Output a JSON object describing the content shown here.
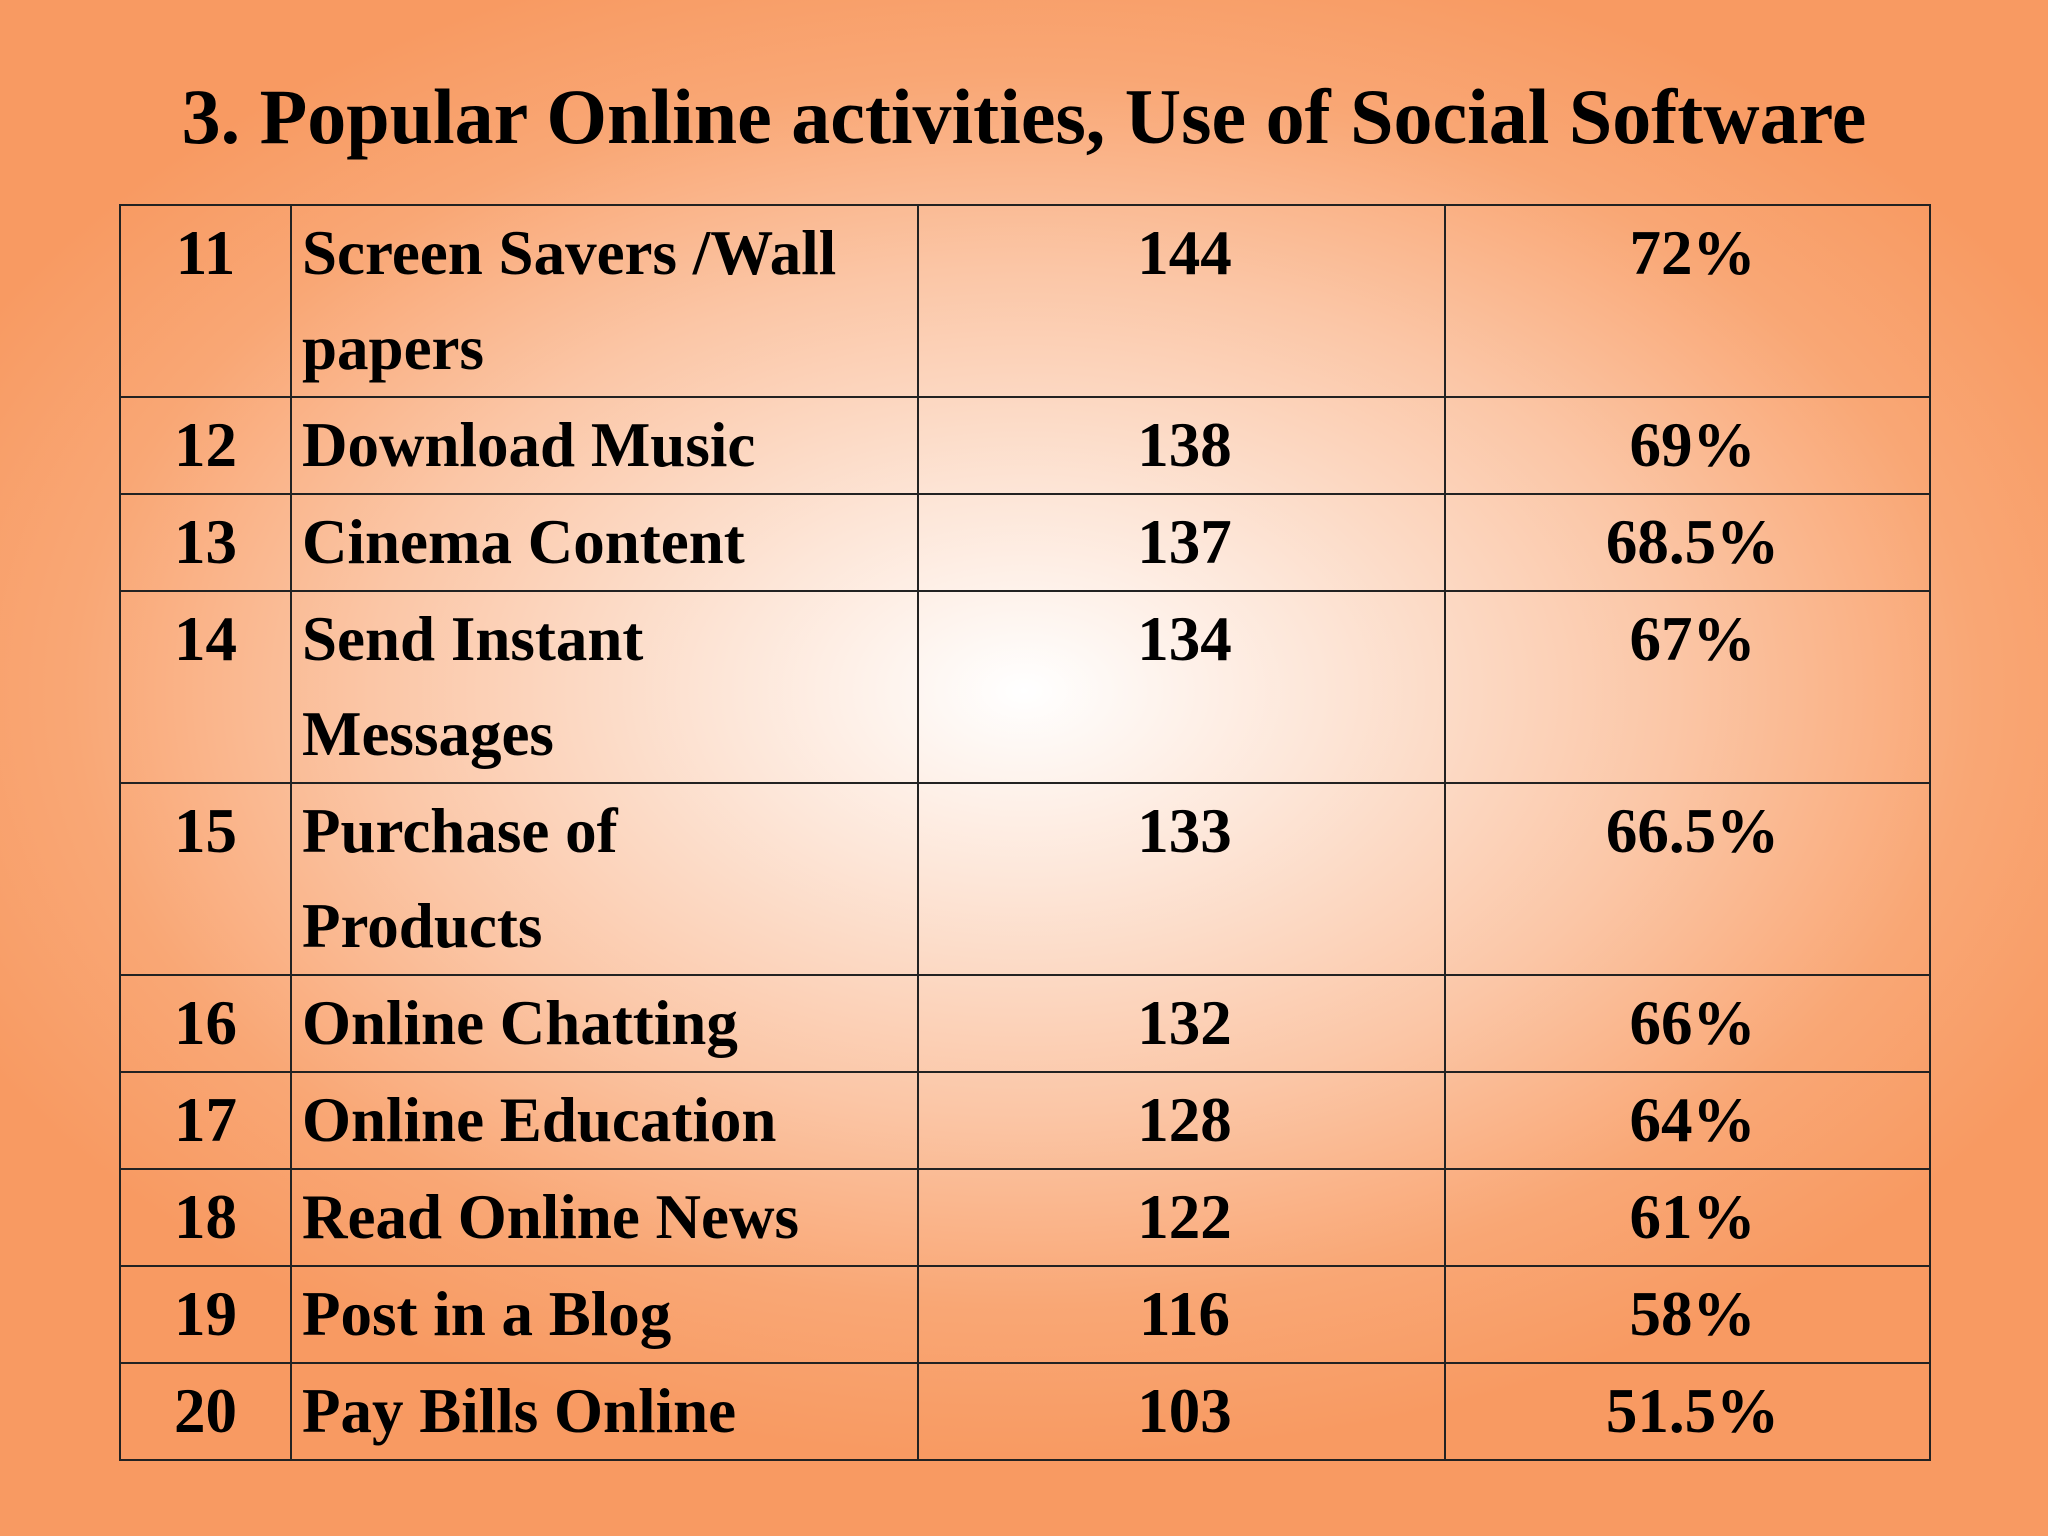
{
  "slide": {
    "title": "3. Popular Online activities, Use of Social Software"
  },
  "table": {
    "rows": [
      {
        "no": "11",
        "activity_line1": "Screen Savers /Wall",
        "activity_line2": "papers",
        "count": "144",
        "percent": "72%"
      },
      {
        "no": "12",
        "activity_line1": "Download Music",
        "activity_line2": "",
        "count": "138",
        "percent": "69%"
      },
      {
        "no": "13",
        "activity_line1": "Cinema Content",
        "activity_line2": "",
        "count": "137",
        "percent": "68.5%"
      },
      {
        "no": "14",
        "activity_line1": "Send Instant",
        "activity_line2": "Messages",
        "count": "134",
        "percent": "67%"
      },
      {
        "no": "15",
        "activity_line1": "Purchase of",
        "activity_line2": "Products",
        "count": "133",
        "percent": "66.5%"
      },
      {
        "no": "16",
        "activity_line1": "Online Chatting",
        "activity_line2": "",
        "count": "132",
        "percent": "66%"
      },
      {
        "no": "17",
        "activity_line1": "Online Education",
        "activity_line2": "",
        "count": "128",
        "percent": "64%"
      },
      {
        "no": "18",
        "activity_line1": "Read Online News",
        "activity_line2": "",
        "count": "122",
        "percent": "61%"
      },
      {
        "no": "19",
        "activity_line1": "Post in a Blog",
        "activity_line2": "",
        "count": "116",
        "percent": "58%"
      },
      {
        "no": "20",
        "activity_line1": "Pay Bills Online",
        "activity_line2": "",
        "count": "103",
        "percent": "51.5%"
      }
    ]
  }
}
